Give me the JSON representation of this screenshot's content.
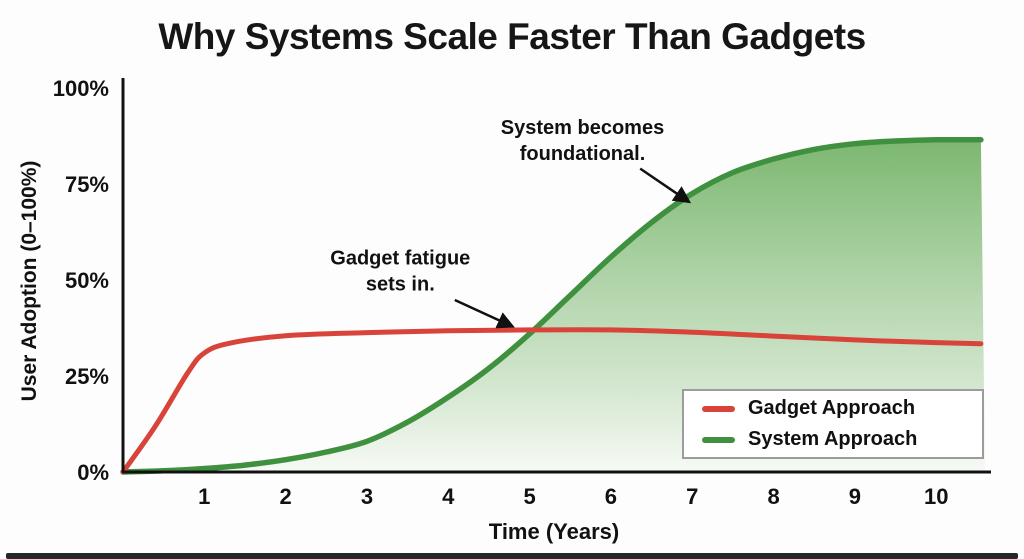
{
  "title": "Why Systems Scale Faster Than Gadgets",
  "chart_data": {
    "type": "line",
    "title": "Why Systems Scale Faster Than Gadgets",
    "xlabel": "Time (Years)",
    "ylabel": "User Adoption (0–100%)",
    "xlim": [
      0,
      10.6
    ],
    "ylim": [
      0,
      100
    ],
    "grid": false,
    "legend_position": "lower-right",
    "x_ticks": [
      1,
      2,
      3,
      4,
      5,
      6,
      7,
      8,
      9,
      10
    ],
    "y_ticks": [
      {
        "value": 0,
        "label": "0%"
      },
      {
        "value": 25,
        "label": "25%"
      },
      {
        "value": 50,
        "label": "50%"
      },
      {
        "value": 75,
        "label": "75%"
      },
      {
        "value": 100,
        "label": "100%"
      }
    ],
    "series": [
      {
        "name": "Gadget Approach",
        "color": "#d8443a",
        "fill": false,
        "points": [
          [
            0,
            0
          ],
          [
            0.4,
            12
          ],
          [
            0.8,
            26
          ],
          [
            1,
            31
          ],
          [
            1.3,
            33.5
          ],
          [
            2,
            35.5
          ],
          [
            3,
            36.3
          ],
          [
            4,
            36.8
          ],
          [
            5,
            37
          ],
          [
            6,
            37
          ],
          [
            7,
            36.4
          ],
          [
            8,
            35.4
          ],
          [
            9,
            34.4
          ],
          [
            10,
            33.7
          ],
          [
            10.55,
            33.4
          ]
        ]
      },
      {
        "name": "System Approach",
        "color": "#3f9140",
        "fill": true,
        "fill_gradient": [
          "#61a953",
          "#f3f8f0"
        ],
        "points": [
          [
            0,
            0
          ],
          [
            0.5,
            0.3
          ],
          [
            1,
            0.9
          ],
          [
            1.5,
            1.8
          ],
          [
            2,
            3.2
          ],
          [
            2.5,
            5.2
          ],
          [
            3,
            8
          ],
          [
            3.5,
            13
          ],
          [
            4,
            19.5
          ],
          [
            4.5,
            27
          ],
          [
            5,
            36
          ],
          [
            5.5,
            46
          ],
          [
            6,
            56
          ],
          [
            6.5,
            65
          ],
          [
            7,
            72.5
          ],
          [
            7.5,
            78
          ],
          [
            8,
            81.5
          ],
          [
            8.5,
            84
          ],
          [
            9,
            85.5
          ],
          [
            9.5,
            86.2
          ],
          [
            10,
            86.5
          ],
          [
            10.55,
            86.5
          ]
        ]
      }
    ],
    "annotations": [
      {
        "line1": "System becomes",
        "line2": "foundational.",
        "text_x": 5.65,
        "text_y": 88,
        "arrow": [
          6.36,
          79,
          6.95,
          70.5
        ]
      },
      {
        "line1": "Gadget fatigue",
        "line2": "sets in.",
        "text_x": 3.41,
        "text_y": 54,
        "arrow": [
          4.08,
          44.8,
          4.78,
          38
        ]
      }
    ]
  }
}
